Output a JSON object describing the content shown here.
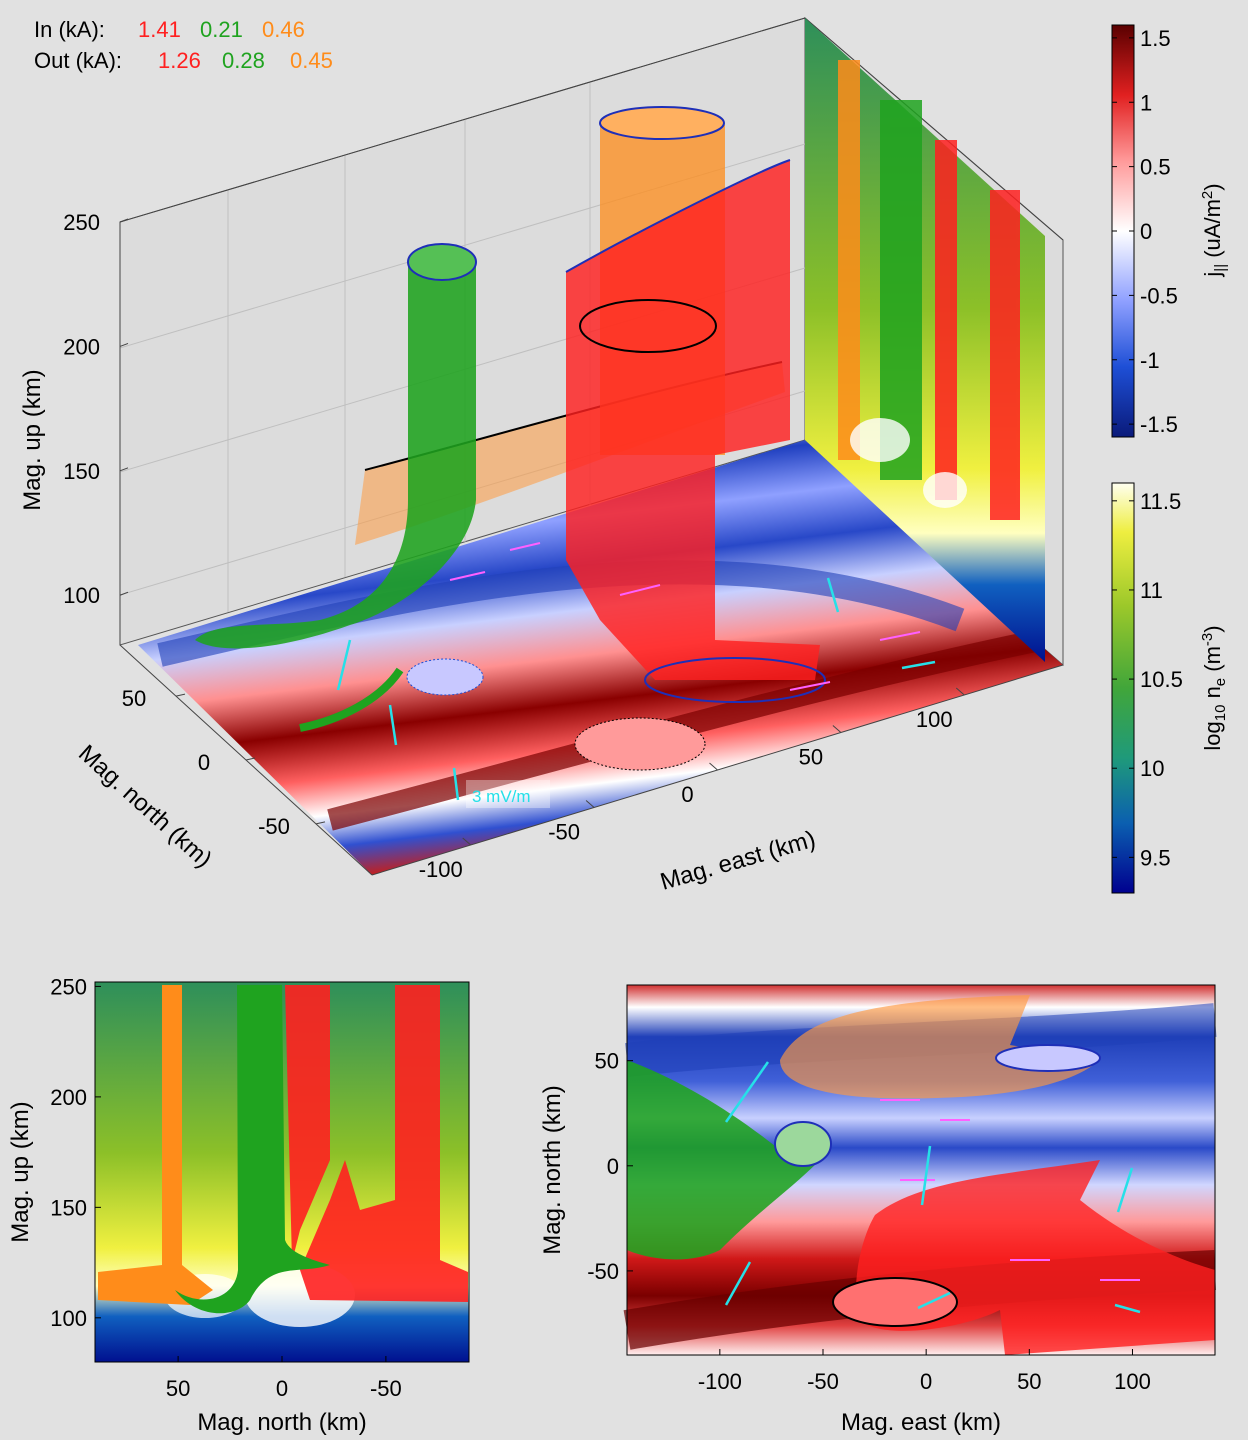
{
  "figure": {
    "in_label": "In (kA):",
    "out_label": "Out (kA):",
    "currents_in": [
      {
        "value": "1.41",
        "color": "#ff2020"
      },
      {
        "value": "0.21",
        "color": "#1fa31f"
      },
      {
        "value": "0.46",
        "color": "#ff8c1a"
      }
    ],
    "currents_out": [
      {
        "value": "1.26",
        "color": "#ff2020"
      },
      {
        "value": "0.28",
        "color": "#1fa31f"
      },
      {
        "value": "0.45",
        "color": "#ff8c1a"
      }
    ],
    "field_scale_label": "3 mV/m"
  },
  "colorbars": [
    {
      "label_main": "j",
      "label_sub": "||",
      "label_units": " (uA/m",
      "label_sup": "2",
      "label_close": ")",
      "range": [
        -1.6,
        1.6
      ],
      "ticks": [
        "1.5",
        "1",
        "0.5",
        "0",
        "-0.5",
        "-1",
        "-1.5"
      ],
      "tick_values": [
        1.5,
        1,
        0.5,
        0,
        -0.5,
        -1,
        -1.5
      ],
      "colormap": [
        "#0a1a7a",
        "#1e4fd6",
        "#8fa0ff",
        "#ffffff",
        "#ff9a9a",
        "#e12020",
        "#5a0000"
      ]
    },
    {
      "label_main": "log",
      "label_sub": "10",
      "label_units": " n",
      "label_sub2": "e",
      "label_units2": " (m",
      "label_sup": "-3",
      "label_close": ")",
      "range": [
        9.3,
        11.6
      ],
      "ticks": [
        "11.5",
        "11",
        "10.5",
        "10",
        "9.5"
      ],
      "tick_values": [
        11.5,
        11,
        10.5,
        10,
        9.5
      ],
      "colormap": [
        "#00008f",
        "#0b5fb0",
        "#1f9a7a",
        "#41a63a",
        "#9cc82a",
        "#eeee40",
        "#fffff0"
      ]
    }
  ],
  "chart_data": [
    {
      "type": "surface3d",
      "title": "",
      "xlabel": "Mag. east (km)",
      "ylabel": "Mag. north (km)",
      "zlabel": "Mag. up (km)",
      "xticks": [
        "-100",
        "-50",
        "0",
        "50",
        "100"
      ],
      "xtick_values": [
        -100,
        -50,
        0,
        50,
        100
      ],
      "yticks": [
        "50",
        "0",
        "-50"
      ],
      "ytick_values": [
        50,
        0,
        -50
      ],
      "zticks": [
        "250",
        "200",
        "150",
        "100"
      ],
      "ztick_values": [
        250,
        200,
        150,
        100
      ],
      "xlim": [
        -140,
        140
      ],
      "ylim": [
        -90,
        90
      ],
      "zlim": [
        80,
        250
      ],
      "grid": true
    },
    {
      "type": "heatmap",
      "xlabel": "Mag. north (km)",
      "ylabel": "Mag. up (km)",
      "xticks": [
        "50",
        "0",
        "-50"
      ],
      "xtick_values": [
        50,
        0,
        -50
      ],
      "yticks": [
        "250",
        "200",
        "150",
        "100"
      ],
      "ytick_values": [
        250,
        200,
        150,
        100
      ],
      "xlim": [
        90,
        -90
      ],
      "ylim": [
        80,
        252
      ],
      "flux_tubes": [
        {
          "color": "#ff8c1a",
          "north_km": 48,
          "top_km": 250
        },
        {
          "color": "#1fa31f",
          "north_km": 12,
          "top_km": 250
        },
        {
          "color": "#ff2020",
          "north_km": -60,
          "top_km": 250
        }
      ]
    },
    {
      "type": "heatmap",
      "xlabel": "Mag. east (km)",
      "ylabel": "Mag. north (km)",
      "xticks": [
        "-100",
        "-50",
        "0",
        "50",
        "100"
      ],
      "xtick_values": [
        -100,
        -50,
        0,
        50,
        100
      ],
      "yticks": [
        "50",
        "0",
        "-50"
      ],
      "ytick_values": [
        50,
        0,
        -50
      ],
      "xlim": [
        -145,
        140
      ],
      "ylim": [
        -90,
        86
      ]
    }
  ]
}
